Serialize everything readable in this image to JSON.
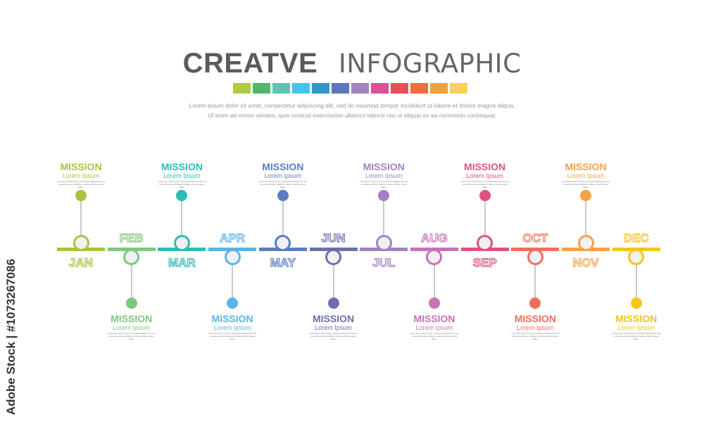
{
  "header": {
    "title_bold": "CREATVE",
    "title_light": "INFOGRAPHIC",
    "intro_line1": "Lorem ipsum dolor sit amet, consectetur adipiscing elit, sed do eiusmod tempor incididunt ut labore et dolore magna aliqua.",
    "intro_line2": "Ut enim ad minim veniam, quis nostrud exercitation ullamco laboris nisi ut aliquip ex ea commodo consequat."
  },
  "swatches": [
    "#b0cc3e",
    "#4cb96b",
    "#5bc4b2",
    "#3ec6f0",
    "#2f96d0",
    "#5a78bb",
    "#a284bd",
    "#de4f96",
    "#e84e55",
    "#f26d41",
    "#f6a03a",
    "#fdd157"
  ],
  "timeline": [
    {
      "month": "JAN",
      "title": "MISSION",
      "subtitle": "Lorem Ipsum",
      "body": "Lorem ipsum dolor sit amet, consectetur adipiscing elit, sed do eiusmod tempor incididunt ut labore et dolore magna aliqua.",
      "color": "#a9c23f",
      "position": "top"
    },
    {
      "month": "FEB",
      "title": "MISSION",
      "subtitle": "Lorem Ipsum",
      "body": "Lorem ipsum dolor sit amet, consectetur adipiscing elit, sed do eiusmod tempor incididunt ut labore et dolore magna aliqua.",
      "color": "#7ec77f",
      "position": "bottom"
    },
    {
      "month": "MAR",
      "title": "MISSION",
      "subtitle": "Lorem Ipsum",
      "body": "Lorem ipsum dolor sit amet, consectetur adipiscing elit, sed do eiusmod tempor incididunt ut labore et dolore magna aliqua.",
      "color": "#2bbdb4",
      "position": "top"
    },
    {
      "month": "APR",
      "title": "MISSION",
      "subtitle": "Lorem Ipsum",
      "body": "Lorem ipsum dolor sit amet, consectetur adipiscing elit, sed do eiusmod tempor incididunt ut labore et dolore magna aliqua.",
      "color": "#5ab4e8",
      "position": "bottom"
    },
    {
      "month": "MAY",
      "title": "MISSION",
      "subtitle": "Lorem Ipsum",
      "body": "Lorem ipsum dolor sit amet, consectetur adipiscing elit, sed do eiusmod tempor incididunt ut labore et dolore magna aliqua.",
      "color": "#5b7dc6",
      "position": "top"
    },
    {
      "month": "JUN",
      "title": "MISSION",
      "subtitle": "Lorem Ipsum",
      "body": "Lorem ipsum dolor sit amet, consectetur adipiscing elit, sed do eiusmod tempor incididunt ut labore et dolore magna aliqua.",
      "color": "#6b6fae",
      "position": "bottom"
    },
    {
      "month": "JUL",
      "title": "MISSION",
      "subtitle": "Lorem Ipsum",
      "body": "Lorem ipsum dolor sit amet, consectetur adipiscing elit, sed do eiusmod tempor incididunt ut labore et dolore magna aliqua.",
      "color": "#a082c0",
      "position": "top"
    },
    {
      "month": "AUG",
      "title": "MISSION",
      "subtitle": "Lorem Ipsum",
      "body": "Lorem ipsum dolor sit amet, consectetur adipiscing elit, sed do eiusmod tempor incididunt ut labore et dolore magna aliqua.",
      "color": "#c872b7",
      "position": "bottom"
    },
    {
      "month": "SEP",
      "title": "MISSION",
      "subtitle": "Lorem Ipsum",
      "body": "Lorem ipsum dolor sit amet, consectetur adipiscing elit, sed do eiusmod tempor incididunt ut labore et dolore magna aliqua.",
      "color": "#e0527e",
      "position": "top"
    },
    {
      "month": "OCT",
      "title": "MISSION",
      "subtitle": "Lorem Ipsum",
      "body": "Lorem ipsum dolor sit amet, consectetur adipiscing elit, sed do eiusmod tempor incididunt ut labore et dolore magna aliqua.",
      "color": "#ef6f5b",
      "position": "bottom"
    },
    {
      "month": "NOV",
      "title": "MISSION",
      "subtitle": "Lorem Ipsum",
      "body": "Lorem ipsum dolor sit amet, consectetur adipiscing elit, sed do eiusmod tempor incididunt ut labore et dolore magna aliqua.",
      "color": "#f7a24a",
      "position": "top"
    },
    {
      "month": "DEC",
      "title": "MISSION",
      "subtitle": "Lorem Ipsum",
      "body": "Lorem ipsum dolor sit amet, consectetur adipiscing elit, sed do eiusmod tempor incididunt ut labore et dolore magna aliqua.",
      "color": "#f5c518",
      "position": "bottom"
    }
  ],
  "watermark": "Adobe Stock | #1073267086"
}
